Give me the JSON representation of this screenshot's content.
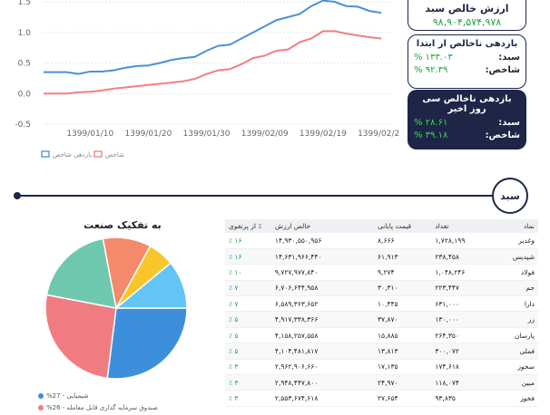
{
  "cards": {
    "nav": {
      "title": "ارزش خالص سبد",
      "value": "۹۸,۹۰۴,۵۷۴,۹۷۸"
    },
    "since_start": {
      "title": "بازدهی ناخالص از ابتدا",
      "rows": [
        {
          "label": "سبد:",
          "value": "% ۱۳۳.۰۳"
        },
        {
          "label": "شاخص:",
          "value": "% ۹۲.۳۹"
        }
      ]
    },
    "last_30": {
      "title": "بازدهی ناخالص سی روز اخیر",
      "rows": [
        {
          "label": "سبد:",
          "value": "% ۲۸.۶۱"
        },
        {
          "label": "شاخص:",
          "value": "% ۳۹.۱۸"
        }
      ]
    }
  },
  "section": {
    "label": "سبد"
  },
  "chart_data": [
    {
      "type": "line",
      "x": [
        "1399/01/03",
        "1399/01/05",
        "1399/01/07",
        "1399/01/09",
        "1399/01/11",
        "1399/01/13",
        "1399/01/15",
        "1399/01/17",
        "1399/01/19",
        "1399/01/21",
        "1399/01/23",
        "1399/01/25",
        "1399/01/27",
        "1399/01/29",
        "1399/01/31",
        "1399/02/02",
        "1399/02/04",
        "1399/02/06",
        "1399/02/08",
        "1399/02/10",
        "1399/02/12",
        "1399/02/14",
        "1399/02/16",
        "1399/02/18",
        "1399/02/20",
        "1399/02/22",
        "1399/02/24",
        "1399/02/26",
        "1399/02/28",
        "1399/02/30"
      ],
      "x_ticks": [
        "1399/01/10",
        "1399/01/20",
        "1399/01/30",
        "1399/02/09",
        "1399/02/19",
        "1399/02/29"
      ],
      "y_ticks": [
        "1.5",
        "1.0",
        "0.5",
        "0.0",
        "-0.5"
      ],
      "ylim": [
        -0.5,
        1.5
      ],
      "legend_position": "bottom-left",
      "series": [
        {
          "name": "بازدهی شاخص",
          "color": "#4a90d9",
          "values": [
            0.35,
            0.35,
            0.35,
            0.32,
            0.36,
            0.36,
            0.38,
            0.42,
            0.45,
            0.46,
            0.5,
            0.55,
            0.58,
            0.6,
            0.7,
            0.78,
            0.8,
            0.9,
            1.0,
            1.1,
            1.2,
            1.25,
            1.3,
            1.43,
            1.52,
            1.5,
            1.43,
            1.42,
            1.35,
            1.32
          ]
        },
        {
          "name": "شاخص",
          "color": "#f08080",
          "values": [
            0.0,
            0.0,
            0.0,
            0.02,
            0.03,
            0.05,
            0.08,
            0.1,
            0.12,
            0.14,
            0.16,
            0.18,
            0.2,
            0.24,
            0.32,
            0.38,
            0.4,
            0.48,
            0.58,
            0.62,
            0.7,
            0.72,
            0.84,
            0.9,
            1.02,
            1.02,
            0.98,
            0.95,
            0.92,
            0.9
          ]
        }
      ]
    },
    {
      "type": "pie",
      "title": "به تفکیک صنعت",
      "slices": [
        {
          "label": "شیمیایی",
          "value": 27,
          "color": "#3d8fdc"
        },
        {
          "label": "صندوق سرمایه گذاری قابل معامله",
          "value": 26,
          "color": "#f07c82"
        },
        {
          "label": "",
          "value": 19,
          "color": "#6ec8ad"
        },
        {
          "label": "",
          "value": 11,
          "color": "#f4896b"
        },
        {
          "label": "",
          "value": 6,
          "color": "#f9c62a"
        },
        {
          "label": "",
          "value": 11,
          "color": "#63c5f5"
        }
      ],
      "legend": [
        {
          "label": "%27 - شیمیایی",
          "color": "#3d8fdc"
        },
        {
          "label": "%26 - صندوق سرمایه گذاری قابل معامله",
          "color": "#f07c82"
        }
      ]
    }
  ],
  "table": {
    "headers": {
      "name": "نماد",
      "count": "تعداد",
      "price": "قیمت پایانی",
      "value": "خالص ارزش",
      "pct": "٪ از پرتفوی"
    },
    "rows": [
      {
        "name": "وغدیر",
        "count": "۱,۷۲۸,۱۹۹",
        "price": "۸,۶۶۶",
        "value": "۱۴,۹۳۰,۵۵۰,۹۵۶",
        "pct": "۱۶ ٪"
      },
      {
        "name": "شپدیس",
        "count": "۲۳۸,۴۵۸",
        "price": "۶۱,۹۱۳",
        "value": "۱۴,۶۳۱,۹۶۶,۴۴۰",
        "pct": "۱۶ ٪"
      },
      {
        "name": "فولاد",
        "count": "۱,۰۴۸,۲۴۶",
        "price": "۹,۲۷۴",
        "value": "۹,۷۲۷,۹۷۷,۸۴۰",
        "pct": "۱۰ ٪"
      },
      {
        "name": "جم",
        "count": "۲۲۳,۴۴۷",
        "price": "۳۰,۳۱۰",
        "value": "۶,۷۰۶,۶۴۴,۹۵۸",
        "pct": "۷ ٪"
      },
      {
        "name": "دارا",
        "count": "۶۳۱,۰۰۰",
        "price": "۱۰,۴۴۵",
        "value": "۶,۵۸۹,۳۶۳,۶۵۲",
        "pct": "۷ ٪"
      },
      {
        "name": "زر",
        "count": "۱۳۰,۰۰۰",
        "price": "۳۷,۸۷۰",
        "value": "۴,۹۱۷,۳۳۸,۳۶۶",
        "pct": "۵ ٪"
      },
      {
        "name": "پارسان",
        "count": "۲۶۴,۳۵۰",
        "price": "۱۵,۸۸۵",
        "value": "۴,۱۵۸,۲۵۷,۵۵۸",
        "pct": "۵ ٪"
      },
      {
        "name": "فملی",
        "count": "۳۰۰,۰۷۲",
        "price": "۱۳,۸۱۳",
        "value": "۴,۱۰۴,۴۸۱,۸۱۷",
        "pct": "۵ ٪"
      },
      {
        "name": "سخوز",
        "count": "۱۷۴,۶۱۸",
        "price": "۱۷,۱۳۵",
        "value": "۲,۹۶۲,۹۰۶,۶۶۰",
        "pct": "۳ ٪"
      },
      {
        "name": "مبین",
        "count": "۱۱۸,۰۷۴",
        "price": "۲۴,۹۷۰",
        "value": "۲,۹۴۸,۴۴۷,۸۰۰",
        "pct": "۳ ٪"
      },
      {
        "name": "فخوز",
        "count": "۹۳,۸۳۵",
        "price": "۲۷,۶۵۴",
        "value": "۲,۵۵۳,۶۷۴,۶۱۸",
        "pct": "۳ ٪"
      }
    ]
  }
}
